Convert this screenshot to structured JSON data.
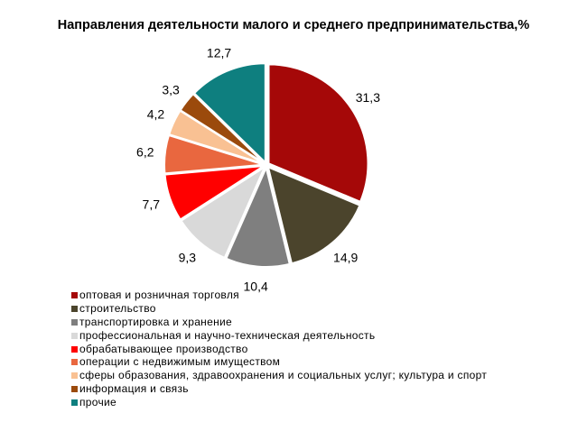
{
  "chart_data": {
    "type": "pie",
    "title": "Направления деятельности малого и среднего предпринимательства,%",
    "start": "top, clockwise",
    "legend_position": "bottom-left",
    "slices": [
      {
        "name": "оптовая и розничная торговля",
        "value": 31.3,
        "label": "31,3",
        "color": "#A50808"
      },
      {
        "name": "строительство",
        "value": 14.9,
        "label": "14,9",
        "color": "#4B442C"
      },
      {
        "name": "транспортировка и хранение",
        "value": 10.4,
        "label": "10,4",
        "color": "#7F7F7F"
      },
      {
        "name": "профессиональная и научно-техническая деятельность",
        "value": 9.3,
        "label": "9,3",
        "color": "#D9D9D9"
      },
      {
        "name": "обрабатывающее производство",
        "value": 7.7,
        "label": "7,7",
        "color": "#FF0000"
      },
      {
        "name": "операции с недвижимым имуществом",
        "value": 6.2,
        "label": "6,2",
        "color": "#E9673F"
      },
      {
        "name": "сферы образования, здравоохранения и социальных услуг; культура и спорт",
        "value": 4.2,
        "label": "4,2",
        "color": "#F9C193"
      },
      {
        "name": "информация и связь",
        "value": 3.3,
        "label": "3,3",
        "color": "#9B4A0C"
      },
      {
        "name": "прочие",
        "value": 12.7,
        "label": "12,7",
        "color": "#0E7F7F"
      }
    ]
  }
}
